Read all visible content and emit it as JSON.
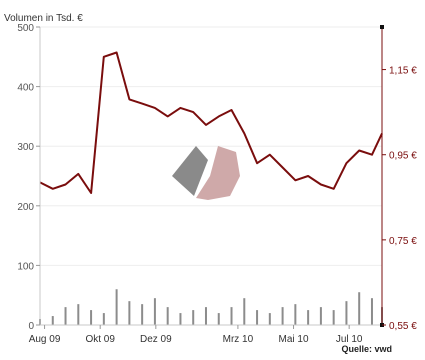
{
  "chart_data": {
    "type": "line",
    "ylabel_left": "Volumen in Tsd. €",
    "source": "Quelle: vwd",
    "ylim_left": [
      0,
      500
    ],
    "ylim_right": [
      0.55,
      1.25
    ],
    "yticks_left": [
      "0",
      "100",
      "200",
      "300",
      "400",
      "500"
    ],
    "yticks_left_values": [
      0,
      100,
      200,
      300,
      400,
      500
    ],
    "yticks_right": [
      "0,55 €",
      "0,75 €",
      "0,95 €",
      "1,15 €"
    ],
    "yticks_right_values": [
      0.55,
      0.75,
      0.95,
      1.15
    ],
    "xticks": [
      "Aug 09",
      "Okt 09",
      "Dez 09",
      "Mrz 10",
      "Mai 10",
      "Jul 10"
    ],
    "x": [
      "2009-07-27",
      "2009-08-10",
      "2009-08-24",
      "2009-09-07",
      "2009-09-21",
      "2009-10-05",
      "2009-10-19",
      "2009-11-02",
      "2009-11-16",
      "2009-11-30",
      "2009-12-14",
      "2009-12-28",
      "2010-01-11",
      "2010-01-25",
      "2010-02-08",
      "2010-02-22",
      "2010-03-08",
      "2010-03-22",
      "2010-04-05",
      "2010-04-19",
      "2010-05-03",
      "2010-05-17",
      "2010-05-31",
      "2010-06-14",
      "2010-06-28",
      "2010-07-12",
      "2010-07-26",
      "2010-08-06"
    ],
    "grid": true,
    "colors": {
      "price_line": "#7a0d0d",
      "volume_bars": "#8c8c8c",
      "axis": "#c9c9c9"
    },
    "series": [
      {
        "axis": "right",
        "type": "line",
        "values": [
          0.885,
          0.87,
          0.88,
          0.905,
          0.86,
          1.18,
          1.19,
          1.08,
          1.07,
          1.06,
          1.04,
          1.06,
          1.05,
          1.02,
          1.04,
          1.055,
          1.0,
          0.93,
          0.95,
          0.92,
          0.89,
          0.9,
          0.88,
          0.87,
          0.93,
          0.96,
          0.95,
          1.0
        ]
      },
      {
        "axis": "left",
        "type": "bar",
        "values": [
          10,
          15,
          30,
          35,
          25,
          20,
          60,
          40,
          35,
          45,
          30,
          20,
          25,
          30,
          20,
          30,
          45,
          25,
          20,
          30,
          35,
          25,
          30,
          25,
          40,
          55,
          45,
          30
        ]
      }
    ]
  }
}
